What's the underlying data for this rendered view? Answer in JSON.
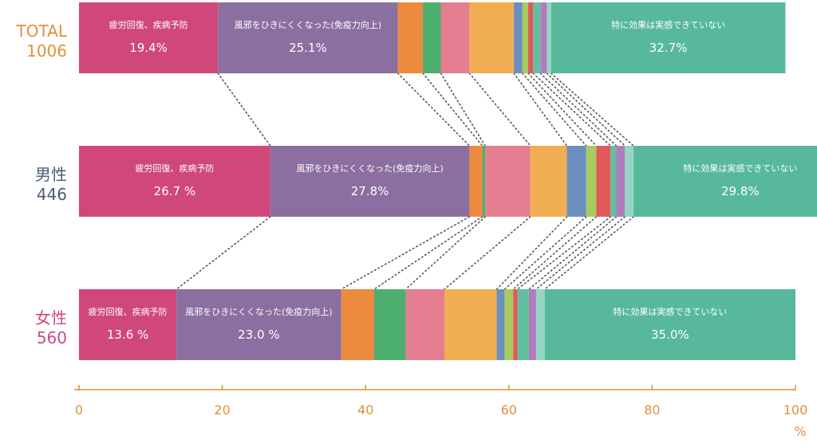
{
  "chart_data": {
    "type": "bar",
    "orientation": "horizontal",
    "stacked": true,
    "xlim": [
      0,
      100
    ],
    "xticks": [
      "0",
      "20",
      "40",
      "60",
      "80",
      "100"
    ],
    "xunit": "%",
    "segment_colors": [
      "#d0477a",
      "#8a6fa0",
      "#ec8a3e",
      "#4caf6e",
      "#e47e90",
      "#f0ad52",
      "#6b8fbf",
      "#a7cb5e",
      "#e05a5a",
      "#62bfa0",
      "#b07cc0",
      "#95d6c2",
      "#57b89c"
    ],
    "rows": [
      {
        "label_line1": "TOTAL",
        "label_line2": "1006",
        "label_color": "#e0903a",
        "segments": [
          19.4,
          25.1,
          3.5,
          2.5,
          4.0,
          6.2,
          1.2,
          0.8,
          0.7,
          1.0,
          0.9,
          0.6,
          32.7
        ],
        "labels": [
          {
            "index": 0,
            "name": "疲労回復、疾病予防",
            "value": "19.4%"
          },
          {
            "index": 1,
            "name": "風邪をひきにくくなった(免疫力向上)",
            "value": "25.1%"
          },
          {
            "index": 12,
            "name": "特に効果は実感できていない",
            "value": "32.7%"
          }
        ]
      },
      {
        "label_line1": "男性",
        "label_line2": "446",
        "label_color": "#4a5a78",
        "segments": [
          26.7,
          27.8,
          1.8,
          0.4,
          6.3,
          5.1,
          2.7,
          1.4,
          2.0,
          0.8,
          1.2,
          1.2,
          29.8
        ],
        "labels": [
          {
            "index": 0,
            "name": "疲労回復、疾病予防",
            "value": "26.7 %"
          },
          {
            "index": 1,
            "name": "風邪をひきにくくなった(免疫力向上)",
            "value": "27.8%"
          },
          {
            "index": 12,
            "name": "特に効果は実感できていない",
            "value": "29.8%"
          }
        ]
      },
      {
        "label_line1": "女性",
        "label_line2": "560",
        "label_color": "#cc4a86",
        "segments": [
          13.6,
          23.0,
          4.6,
          4.4,
          5.4,
          7.3,
          1.1,
          1.2,
          0.6,
          1.6,
          1.0,
          1.2,
          35.0
        ],
        "labels": [
          {
            "index": 0,
            "name": "疲労回復、疾病予防",
            "value": "13.6 %"
          },
          {
            "index": 1,
            "name": "風邪をひきにくくなった(免疫力向上)",
            "value": "23.0 %"
          },
          {
            "index": 12,
            "name": "特に効果は実感できていない",
            "value": "35.0%"
          }
        ]
      }
    ]
  }
}
